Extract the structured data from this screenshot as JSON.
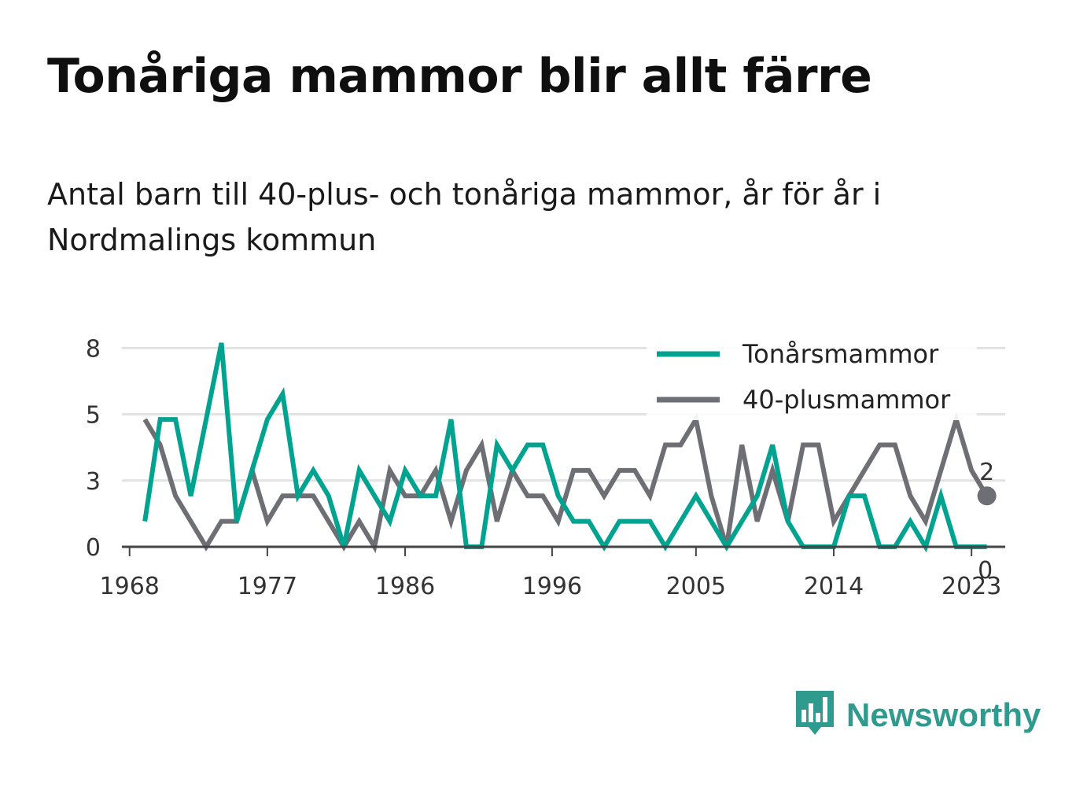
{
  "title": "Tonåriga mammor blir allt färre",
  "subtitle": "Antal barn till 40-plus- och tonåriga mammor, år för år i Nordmalings kommun",
  "brand": {
    "name": "Newsworthy",
    "icon": "bar-chart-speech-bubble-icon"
  },
  "chart_data": {
    "type": "line",
    "title": "",
    "xlabel": "",
    "ylabel": "",
    "x": [
      1969,
      1970,
      1971,
      1972,
      1973,
      1974,
      1975,
      1976,
      1977,
      1978,
      1979,
      1980,
      1981,
      1982,
      1983,
      1984,
      1985,
      1986,
      1987,
      1988,
      1989,
      1990,
      1991,
      1992,
      1993,
      1994,
      1995,
      1996,
      1997,
      1998,
      1999,
      2000,
      2001,
      2002,
      2003,
      2004,
      2005,
      2006,
      2007,
      2008,
      2009,
      2010,
      2011,
      2012,
      2013,
      2014,
      2015,
      2016,
      2017,
      2018,
      2019,
      2020,
      2021,
      2022,
      2023,
      2024
    ],
    "xticks": [
      "1968",
      "1977",
      "1986",
      "1996",
      "2005",
      "2014",
      "2023"
    ],
    "xtick_values": [
      1968,
      1977,
      1986,
      1995.6,
      2005,
      2014,
      2023
    ],
    "xlim": [
      1967.5,
      2025.2
    ],
    "yticks": [
      "0",
      "3",
      "5",
      "8"
    ],
    "ytick_values": [
      0,
      2.6,
      5.2,
      7.8
    ],
    "ylim": [
      0,
      8.8
    ],
    "grid": true,
    "legend_position": "top-right",
    "series": [
      {
        "name": "Tonårsmammor",
        "color": "#00a390",
        "values": [
          1,
          5,
          5,
          2,
          5,
          8,
          1,
          3,
          5,
          6,
          2,
          3,
          2,
          0,
          3,
          2,
          1,
          3,
          2,
          2,
          5,
          0,
          0,
          4,
          3,
          4,
          4,
          2,
          1,
          1,
          0,
          1,
          1,
          1,
          0,
          1,
          2,
          1,
          0,
          1,
          2,
          4,
          1,
          0,
          0,
          0,
          2,
          2,
          0,
          0,
          1,
          0,
          2,
          0,
          0,
          0
        ],
        "end_label": "0"
      },
      {
        "name": "40-plusmammor",
        "color": "#6e6e75",
        "values": [
          5,
          4,
          2,
          1,
          0,
          1,
          1,
          3,
          1,
          2,
          2,
          2,
          1,
          0,
          1,
          0,
          3,
          2,
          2,
          3,
          1,
          3,
          4,
          1,
          3,
          2,
          2,
          1,
          3,
          3,
          2,
          3,
          3,
          2,
          4,
          4,
          5,
          2,
          0,
          4,
          1,
          3,
          1,
          4,
          4,
          1,
          2,
          3,
          4,
          4,
          2,
          1,
          3,
          5,
          3,
          2
        ],
        "end_label": "2"
      }
    ]
  }
}
